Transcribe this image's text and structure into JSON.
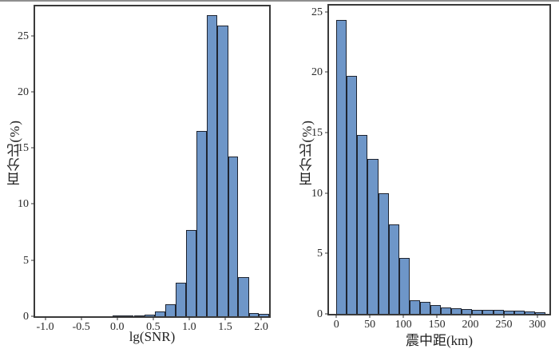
{
  "page": {
    "background": "#ffffff",
    "top_strip_color": "#8f8f8f"
  },
  "chart_data": [
    {
      "type": "bar",
      "subtype": "histogram",
      "title": "",
      "xlabel": "lg(SNR)",
      "ylabel": "百分比(%)",
      "xlim": [
        -1.14,
        2.11
      ],
      "ylim": [
        0,
        27.6
      ],
      "grid": false,
      "legend": null,
      "bar_fill": "#6e96c8",
      "bar_edge": "#1e2430",
      "x_tick_values": [
        -1.0,
        -0.5,
        0.0,
        0.5,
        1.0,
        1.5,
        2.0
      ],
      "x_tick_labels": [
        "-1.0",
        "-0.5",
        "0.0",
        "0.5",
        "1.0",
        "1.5",
        "2.0"
      ],
      "y_tick_values": [
        0,
        5,
        10,
        15,
        20,
        25
      ],
      "y_tick_labels": [
        "0",
        "5",
        "10",
        "15",
        "20",
        "25"
      ],
      "bin_edges": [
        -0.06,
        0.09,
        0.23,
        0.38,
        0.52,
        0.67,
        0.81,
        0.96,
        1.1,
        1.25,
        1.39,
        1.54,
        1.68,
        1.83,
        1.97,
        2.11
      ],
      "values": [
        0.05,
        0.05,
        0.1,
        0.15,
        0.4,
        1.1,
        3.0,
        7.7,
        16.5,
        26.8,
        25.9,
        14.2,
        3.5,
        0.3,
        0.25
      ]
    },
    {
      "type": "bar",
      "subtype": "histogram",
      "title": "",
      "xlabel": "震中距(km)",
      "ylabel": "百分比(%)",
      "xlim": [
        -11,
        318
      ],
      "ylim": [
        0,
        25.5
      ],
      "grid": false,
      "legend": null,
      "bar_fill": "#6e96c8",
      "bar_edge": "#1e2430",
      "x_tick_values": [
        0,
        50,
        100,
        150,
        200,
        250,
        300
      ],
      "x_tick_labels": [
        "0",
        "50",
        "100",
        "150",
        "200",
        "250",
        "300"
      ],
      "y_tick_values": [
        0,
        5,
        10,
        15,
        20,
        25
      ],
      "y_tick_labels": [
        "0",
        "5",
        "10",
        "15",
        "20",
        "25"
      ],
      "bin_edges": [
        0,
        15.6,
        31.2,
        46.8,
        62.4,
        78.0,
        93.6,
        109.2,
        124.8,
        140.4,
        156.0,
        171.6,
        187.2,
        202.8,
        218.4,
        234.0,
        249.6,
        265.2,
        280.8,
        296.4,
        312.0
      ],
      "values": [
        24.3,
        19.7,
        14.8,
        12.8,
        10.0,
        7.4,
        4.6,
        1.15,
        1.0,
        0.7,
        0.55,
        0.45,
        0.4,
        0.35,
        0.3,
        0.3,
        0.25,
        0.25,
        0.2,
        0.15
      ]
    }
  ]
}
